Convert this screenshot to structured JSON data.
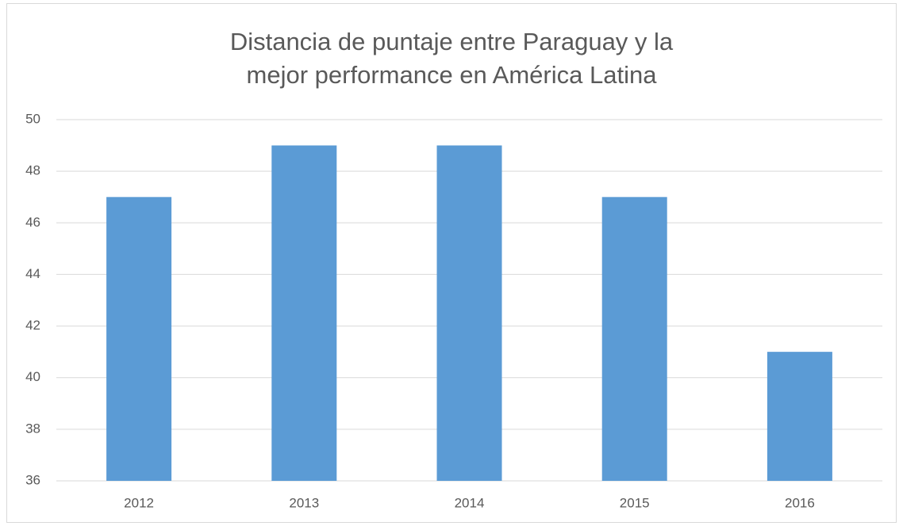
{
  "chart_data": {
    "type": "bar",
    "title": "Distancia de puntaje entre Paraguay y la mejor performance en América Latina",
    "categories": [
      "2012",
      "2013",
      "2014",
      "2015",
      "2016"
    ],
    "values": [
      47,
      49,
      49,
      47,
      41
    ],
    "color": "#5b9bd5",
    "ylim": [
      36,
      50
    ],
    "yticks": [
      36,
      38,
      40,
      42,
      44,
      46,
      48,
      50
    ],
    "grid": true
  }
}
